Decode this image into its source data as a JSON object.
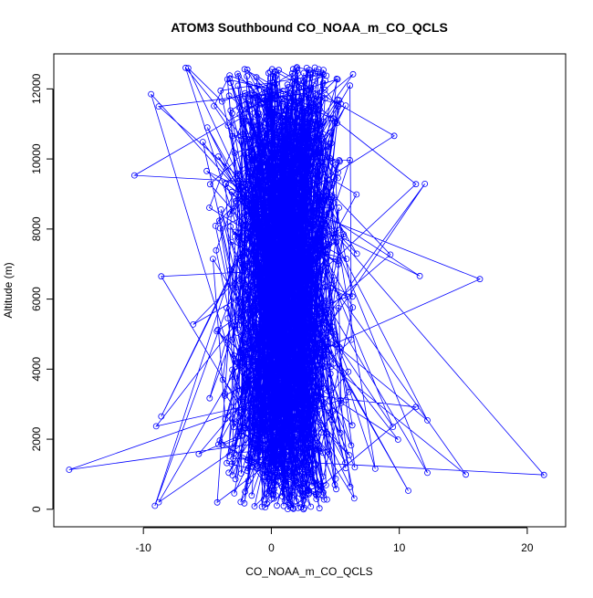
{
  "chart_data": {
    "type": "scatter",
    "title": "ATOM3 Southbound CO_NOAA_m_CO_QCLS",
    "xlabel": "CO_NOAA_m_CO_QCLS",
    "ylabel": "Altitude (m)",
    "xlim": [
      -17,
      23
    ],
    "ylim": [
      -500,
      13000
    ],
    "x_ticks": [
      -10,
      0,
      10,
      20
    ],
    "y_ticks": [
      0,
      2000,
      4000,
      6000,
      8000,
      10000,
      12000
    ],
    "x_tick_labels": [
      "-10",
      "0",
      "10",
      "20"
    ],
    "y_tick_labels": [
      "0",
      "2000",
      "4000",
      "6000",
      "8000",
      "10000",
      "12000"
    ],
    "grid": false,
    "marker": "open-circle",
    "connected": true,
    "series_color": "#0000ff",
    "core_distribution": {
      "x_mean": 1.0,
      "x_sd": 2.3,
      "y_min": 0,
      "y_max": 12600,
      "count": 1400
    },
    "notable_points": [
      {
        "x": -15.8,
        "y": 1130
      },
      {
        "x": 21.3,
        "y": 980
      },
      {
        "x": 15.2,
        "y": 990
      },
      {
        "x": 12.2,
        "y": 1040
      },
      {
        "x": 16.3,
        "y": 6570
      },
      {
        "x": 11.6,
        "y": 6660
      },
      {
        "x": -10.7,
        "y": 9530
      },
      {
        "x": 12.0,
        "y": 9290
      },
      {
        "x": 11.3,
        "y": 9280
      },
      {
        "x": 12.2,
        "y": 2540
      },
      {
        "x": 11.3,
        "y": 2920
      },
      {
        "x": 10.7,
        "y": 530
      },
      {
        "x": -9.4,
        "y": 11850
      },
      {
        "x": -8.8,
        "y": 11500
      },
      {
        "x": -8.6,
        "y": 6650
      },
      {
        "x": -9.0,
        "y": 2370
      },
      {
        "x": -8.6,
        "y": 2650
      },
      {
        "x": -9.1,
        "y": 100
      },
      {
        "x": -8.8,
        "y": 200
      },
      {
        "x": 9.6,
        "y": 10660
      },
      {
        "x": 9.3,
        "y": 7270
      },
      {
        "x": 9.9,
        "y": 1990
      },
      {
        "x": 9.5,
        "y": 2350
      },
      {
        "x": -6.7,
        "y": 12600
      },
      {
        "x": -6.5,
        "y": 12590
      },
      {
        "x": 3.7,
        "y": 12560
      },
      {
        "x": 3.4,
        "y": 12610
      },
      {
        "x": 2.0,
        "y": 12620
      }
    ]
  }
}
